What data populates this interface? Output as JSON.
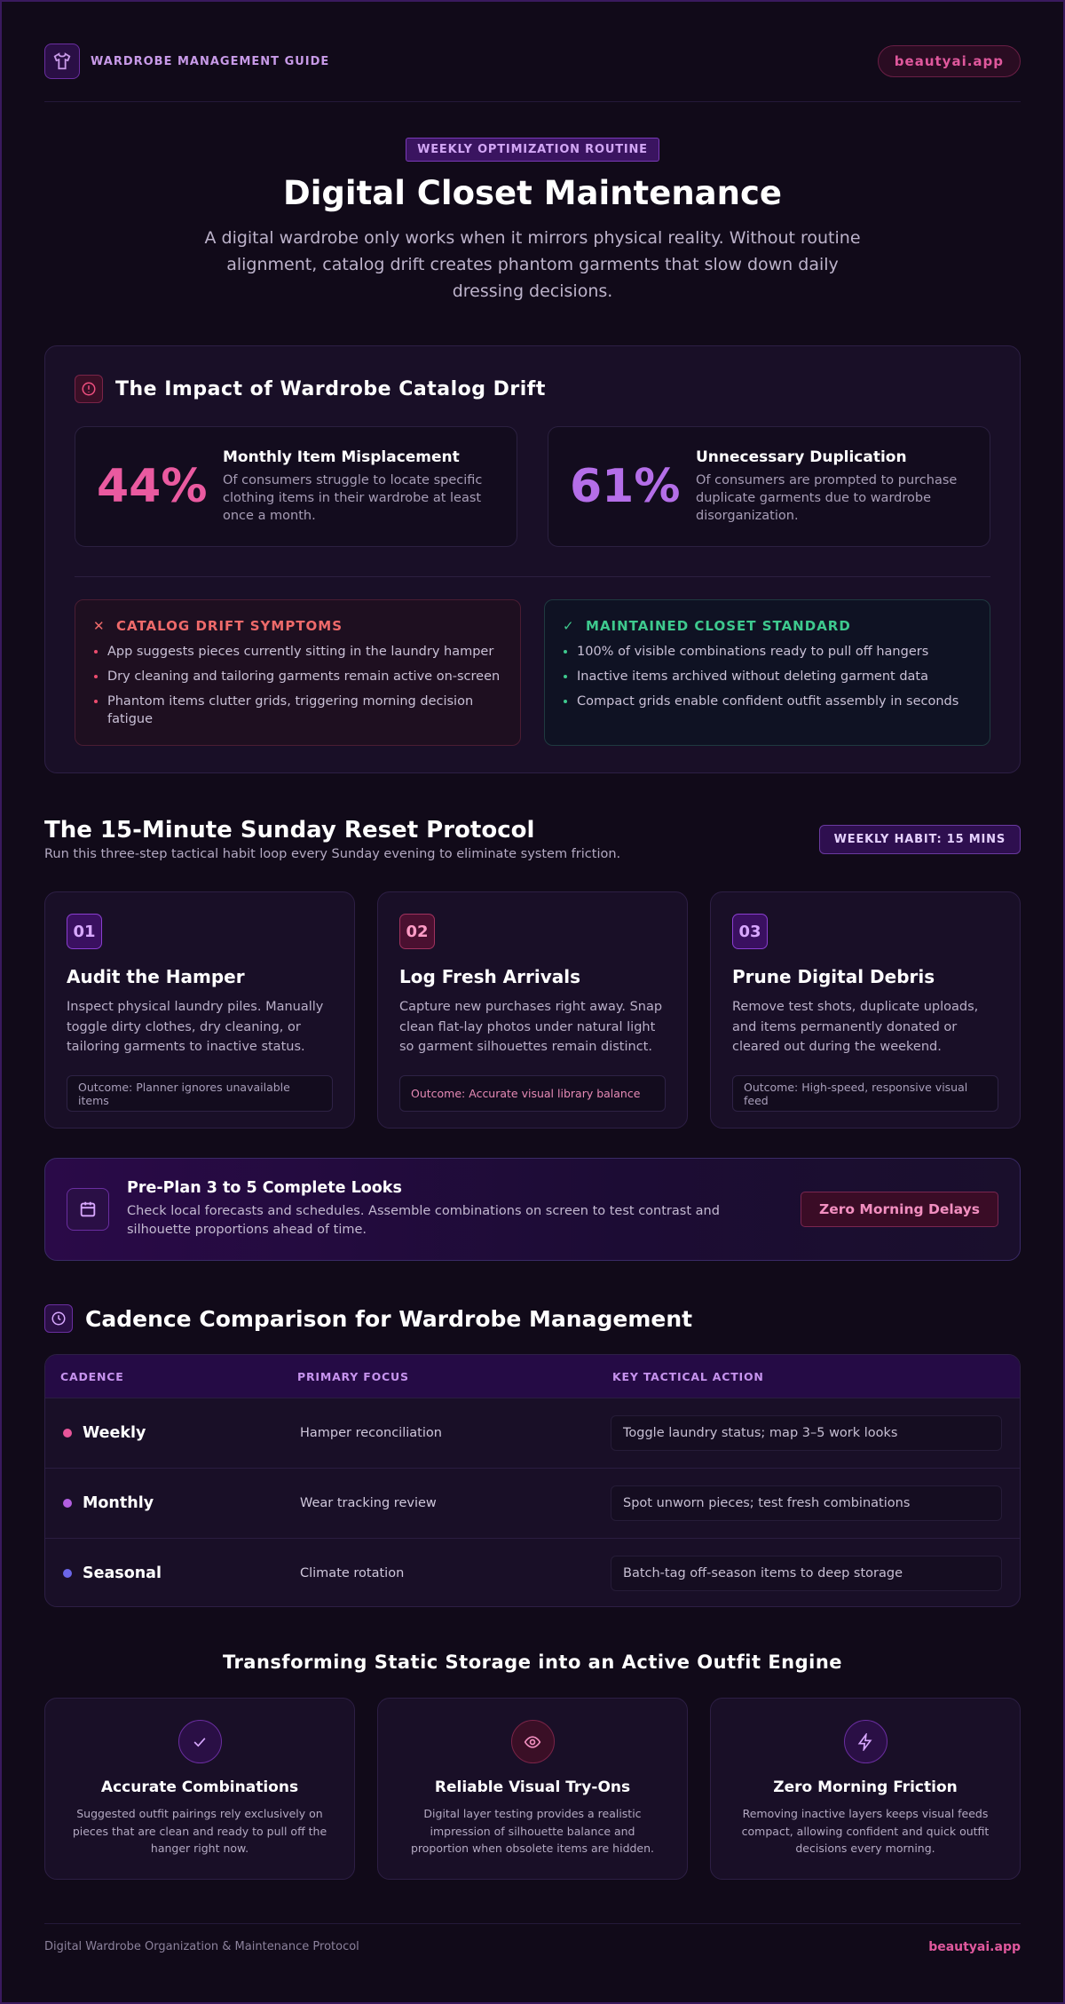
{
  "header": {
    "brand": "WARDROBE MANAGEMENT GUIDE",
    "site": "beautyai.app"
  },
  "hero": {
    "badge": "WEEKLY OPTIMIZATION ROUTINE",
    "title": "Digital Closet Maintenance",
    "subtitle": "A digital wardrobe only works when it mirrors physical reality. Without routine alignment, catalog drift creates phantom garments that slow down daily dressing decisions."
  },
  "impact": {
    "title": "The Impact of Wardrobe Catalog Drift",
    "stats": [
      {
        "value": "44%",
        "title": "Monthly Item Misplacement",
        "text": "Of consumers struggle to locate specific clothing items in their wardrobe at least once a month."
      },
      {
        "value": "61%",
        "title": "Unnecessary Duplication",
        "text": "Of consumers are prompted to purchase duplicate garments due to wardrobe disorganization."
      }
    ],
    "symptoms": {
      "title": "CATALOG DRIFT SYMPTOMS",
      "items": [
        "App suggests pieces currently sitting in the laundry hamper",
        "Dry cleaning and tailoring garments remain active on-screen",
        "Phantom items clutter grids, triggering morning decision fatigue"
      ]
    },
    "standard": {
      "title": "MAINTAINED CLOSET STANDARD",
      "items": [
        "100% of visible combinations ready to pull off hangers",
        "Inactive items archived without deleting garment data",
        "Compact grids enable confident outfit assembly in seconds"
      ]
    }
  },
  "protocol": {
    "title": "The 15-Minute Sunday Reset Protocol",
    "subtitle": "Run this three-step tactical habit loop every Sunday evening to eliminate system friction.",
    "badge": "WEEKLY HABIT: 15 MINS",
    "steps": [
      {
        "number": "01",
        "title": "Audit the Hamper",
        "text": "Inspect physical laundry piles. Manually toggle dirty clothes, dry cleaning, or tailoring garments to inactive status.",
        "outcome": "Outcome: Planner ignores unavailable items"
      },
      {
        "number": "02",
        "title": "Log Fresh Arrivals",
        "text": "Capture new purchases right away. Snap clean flat-lay photos under natural light so garment silhouettes remain distinct.",
        "outcome": "Outcome: Accurate visual library balance"
      },
      {
        "number": "03",
        "title": "Prune Digital Debris",
        "text": "Remove test shots, duplicate uploads, and items permanently donated or cleared out during the weekend.",
        "outcome": "Outcome: High-speed, responsive visual feed"
      }
    ]
  },
  "preplan": {
    "title": "Pre-Plan 3 to 5 Complete Looks",
    "text": "Check local forecasts and schedules. Assemble combinations on screen to test contrast and silhouette proportions ahead of time.",
    "button": "Zero Morning Delays"
  },
  "cadence": {
    "title": "Cadence Comparison for Wardrobe Management",
    "columns": [
      "CADENCE",
      "PRIMARY FOCUS",
      "KEY TACTICAL ACTION"
    ],
    "rows": [
      [
        "Weekly",
        "Hamper reconciliation",
        "Toggle laundry status; map 3–5 work looks"
      ],
      [
        "Monthly",
        "Wear tracking review",
        "Spot unworn pieces; test fresh combinations"
      ],
      [
        "Seasonal",
        "Climate rotation",
        "Batch-tag off-season items to deep storage"
      ]
    ]
  },
  "benefits": {
    "title": "Transforming Static Storage into an Active Outfit Engine",
    "cards": [
      {
        "title": "Accurate Combinations",
        "text": "Suggested outfit pairings rely exclusively on pieces that are clean and ready to pull off the hanger right now."
      },
      {
        "title": "Reliable Visual Try-Ons",
        "text": "Digital layer testing provides a realistic impression of silhouette balance and proportion when obsolete items are hidden."
      },
      {
        "title": "Zero Morning Friction",
        "text": "Removing inactive layers keeps visual feeds compact, allowing confident and quick outfit decisions every morning."
      }
    ]
  },
  "footer": {
    "text": "Digital Wardrobe Organization & Maintenance Protocol",
    "site": "beautyai.app"
  }
}
